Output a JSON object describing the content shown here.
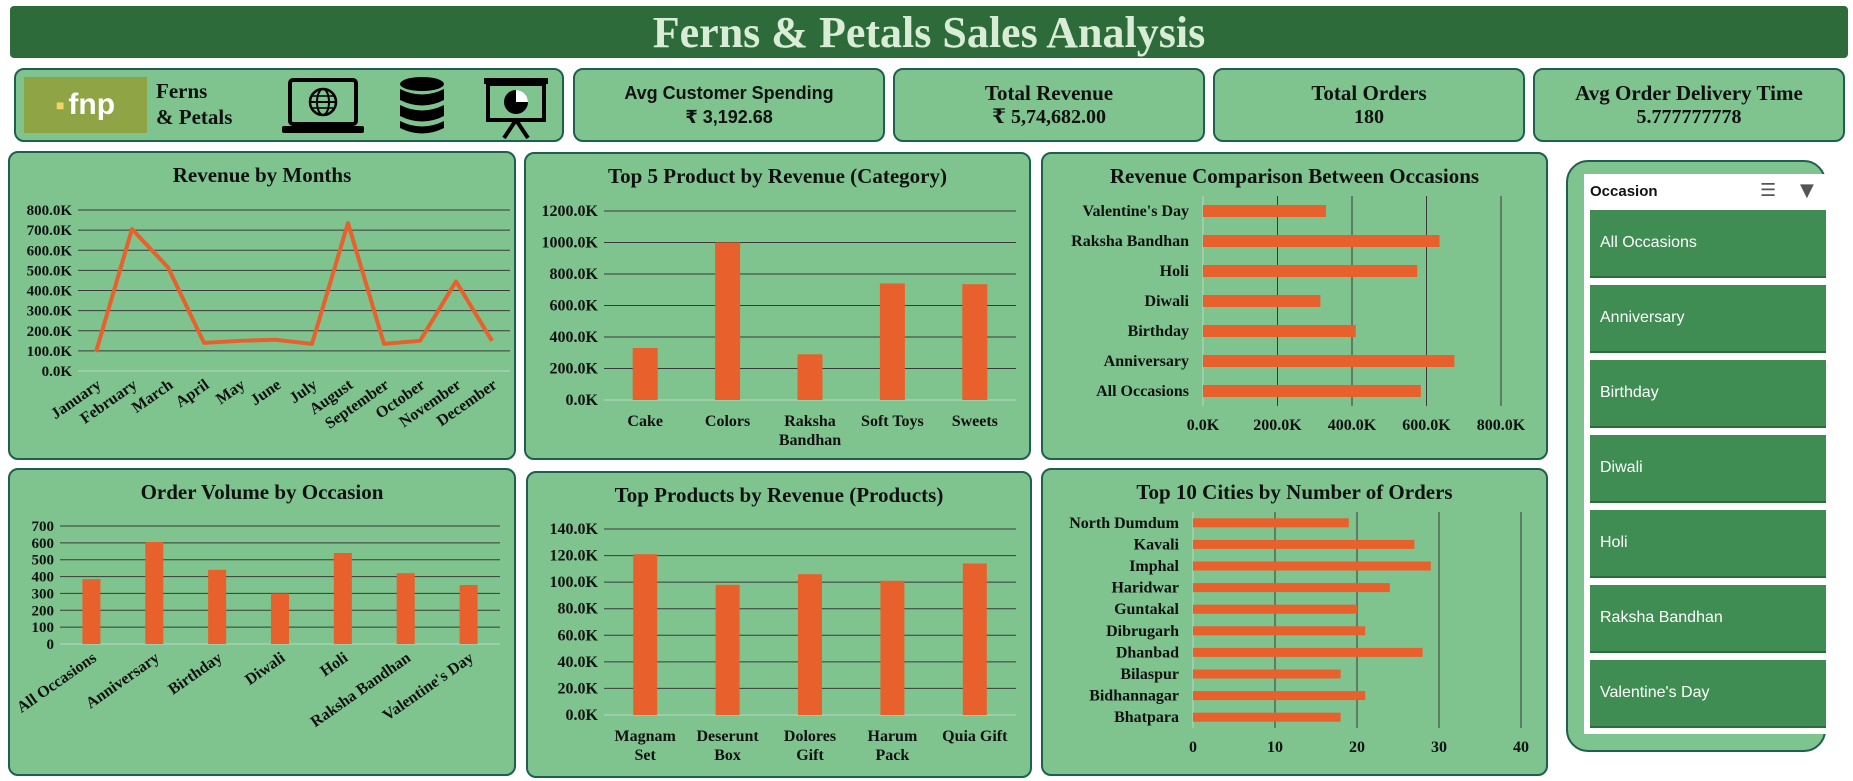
{
  "dashboard": {
    "title": "Ferns & Petals Sales Analysis"
  },
  "brand": {
    "logo_text": "fnp",
    "name_line1": "Ferns",
    "name_line2": "& Petals"
  },
  "kpis": [
    {
      "label": "Avg Customer Spending",
      "value": "₹ 3,192.68"
    },
    {
      "label": "Total Revenue",
      "value": "₹ 5,74,682.00"
    },
    {
      "label": "Total Orders",
      "value": "180"
    },
    {
      "label": "Avg Order Delivery Time",
      "value": "5.777777778"
    }
  ],
  "chart_data": [
    {
      "id": "revenue-by-months",
      "type": "line",
      "title": "Revenue by Months",
      "x": [
        "January",
        "February",
        "March",
        "April",
        "May",
        "June",
        "July",
        "August",
        "September",
        "October",
        "November",
        "December"
      ],
      "values": [
        95000,
        705000,
        515000,
        140000,
        150000,
        155000,
        135000,
        735000,
        135000,
        150000,
        445000,
        150000
      ],
      "ylim": [
        0,
        800000
      ],
      "yticks": [
        "0.0K",
        "100.0K",
        "200.0K",
        "300.0K",
        "400.0K",
        "500.0K",
        "600.0K",
        "700.0K",
        "800.0K"
      ],
      "grid": true,
      "color": "#e8612c"
    },
    {
      "id": "top5-category",
      "type": "bar",
      "title": "Top 5 Product by Revenue (Category)",
      "categories": [
        "Cake",
        "Colors",
        "Raksha Bandhan",
        "Soft Toys",
        "Sweets"
      ],
      "values": [
        330000,
        1000000,
        290000,
        740000,
        735000
      ],
      "ylim": [
        0,
        1200000
      ],
      "yticks": [
        "0.0K",
        "200.0K",
        "400.0K",
        "600.0K",
        "800.0K",
        "1000.0K",
        "1200.0K"
      ],
      "grid": true,
      "color": "#e8612c"
    },
    {
      "id": "revenue-occasions",
      "type": "bar",
      "orientation": "horizontal",
      "title": "Revenue Comparison Between Occasions",
      "categories": [
        "Valentine's Day",
        "Raksha Bandhan",
        "Holi",
        "Diwali",
        "Birthday",
        "Anniversary",
        "All Occasions"
      ],
      "values": [
        330000,
        635000,
        575000,
        315000,
        410000,
        675000,
        585000
      ],
      "xlim": [
        0,
        800000
      ],
      "xticks": [
        "0.0K",
        "200.0K",
        "400.0K",
        "600.0K",
        "800.0K"
      ],
      "grid": true,
      "color": "#e8612c"
    },
    {
      "id": "order-volume-occasion",
      "type": "bar",
      "title": "Order Volume by Occasion",
      "categories": [
        "All Occasions",
        "Anniversary",
        "Birthday",
        "Diwali",
        "Holi",
        "Raksha Bandhan",
        "Valentine's Day"
      ],
      "values": [
        385,
        605,
        440,
        300,
        540,
        420,
        350
      ],
      "ylim": [
        0,
        700
      ],
      "yticks": [
        "0",
        "100",
        "200",
        "300",
        "400",
        "500",
        "600",
        "700"
      ],
      "grid": true,
      "color": "#e8612c"
    },
    {
      "id": "top-products",
      "type": "bar",
      "title": "Top Products by Revenue (Products)",
      "categories": [
        "Magnam Set",
        "Deserunt Box",
        "Dolores Gift",
        "Harum Pack",
        "Quia Gift"
      ],
      "values": [
        121000,
        98000,
        106000,
        101000,
        114000
      ],
      "ylim": [
        0,
        140000
      ],
      "yticks": [
        "0.0K",
        "20.0K",
        "40.0K",
        "60.0K",
        "80.0K",
        "100.0K",
        "120.0K",
        "140.0K"
      ],
      "grid": true,
      "color": "#e8612c"
    },
    {
      "id": "top-cities",
      "type": "bar",
      "orientation": "horizontal",
      "title": "Top 10 Cities by Number of Orders",
      "categories": [
        "North Dumdum",
        "Kavali",
        "Imphal",
        "Haridwar",
        "Guntakal",
        "Dibrugarh",
        "Dhanbad",
        "Bilaspur",
        "Bidhannagar",
        "Bhatpara"
      ],
      "values": [
        19,
        27,
        29,
        24,
        20,
        21,
        28,
        18,
        21,
        18
      ],
      "xlim": [
        0,
        40
      ],
      "xticks": [
        "0",
        "10",
        "20",
        "30",
        "40"
      ],
      "grid": true,
      "color": "#e8612c"
    }
  ],
  "slicer": {
    "title": "Occasion",
    "multi_select_icon": "multi-select-icon",
    "clear_filter_icon": "clear-filter-icon",
    "items": [
      "All Occasions",
      "Anniversary",
      "Birthday",
      "Diwali",
      "Holi",
      "Raksha Bandhan",
      "Valentine's Day"
    ]
  }
}
